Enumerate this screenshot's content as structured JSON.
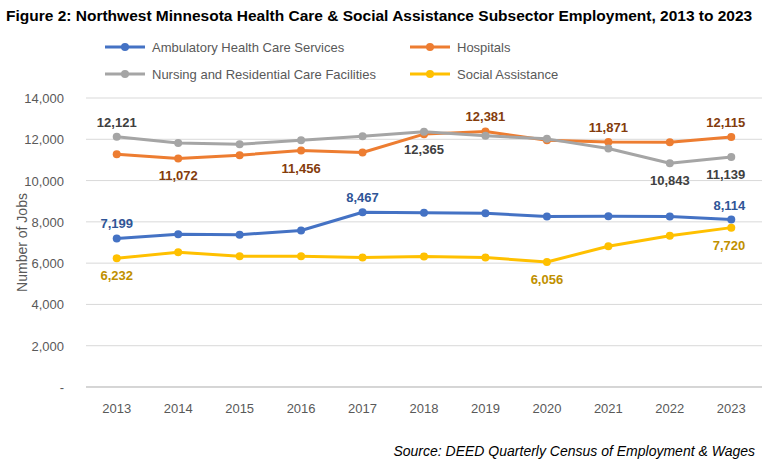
{
  "chart_data": {
    "type": "line",
    "title": "Figure 2:  Northwest Minnesota Health Care & Social Assistance Subsector Employment, 2013 to 2023",
    "source": "Source:  DEED Quarterly Census of Employment & Wages",
    "y_label": "Number of Jobs",
    "categories": [
      "2013",
      "2014",
      "2015",
      "2016",
      "2017",
      "2018",
      "2019",
      "2020",
      "2021",
      "2022",
      "2023"
    ],
    "ylim": [
      0,
      14000
    ],
    "yticks": [
      {
        "value": 0,
        "label": "-"
      },
      {
        "value": 2000,
        "label": "2,000"
      },
      {
        "value": 4000,
        "label": "4,000"
      },
      {
        "value": 6000,
        "label": "6,000"
      },
      {
        "value": 8000,
        "label": "8,000"
      },
      {
        "value": 10000,
        "label": "10,000"
      },
      {
        "value": 12000,
        "label": "12,000"
      },
      {
        "value": 14000,
        "label": "14,000"
      }
    ],
    "grid": true,
    "legend": "top",
    "data_labels": true,
    "marker": "circle",
    "series": [
      {
        "name": "Ambulatory Health Care Services",
        "color": "#4472c4",
        "values": [
          7199,
          7400,
          7380,
          7580,
          8467,
          8440,
          8420,
          8260,
          8270,
          8260,
          8114
        ],
        "value_labels": [
          "7,199",
          null,
          null,
          null,
          "8,467",
          null,
          null,
          null,
          null,
          null,
          "8,114"
        ]
      },
      {
        "name": "Hospitals",
        "color": "#ed7d31",
        "values": [
          11280,
          11072,
          11230,
          11456,
          11360,
          12250,
          12381,
          11950,
          11871,
          11860,
          12115
        ],
        "value_labels": [
          null,
          "11,072",
          null,
          "11,456",
          null,
          null,
          "12,381",
          null,
          "11,871",
          null,
          "12,115"
        ]
      },
      {
        "name": "Nursing and Residential Care Facilities",
        "color": "#a5a5a5",
        "values": [
          12121,
          11820,
          11760,
          11950,
          12150,
          12365,
          12170,
          12020,
          11550,
          10843,
          11139
        ],
        "value_labels": [
          "12,121",
          null,
          null,
          null,
          null,
          "12,365",
          null,
          null,
          null,
          "10,843",
          "11,139"
        ]
      },
      {
        "name": "Social Assistance",
        "color": "#ffc000",
        "values": [
          6232,
          6530,
          6330,
          6330,
          6270,
          6320,
          6270,
          6056,
          6820,
          7330,
          7720
        ],
        "value_labels": [
          "6,232",
          null,
          null,
          null,
          null,
          null,
          null,
          "6,056",
          null,
          null,
          "7,720"
        ]
      }
    ]
  }
}
